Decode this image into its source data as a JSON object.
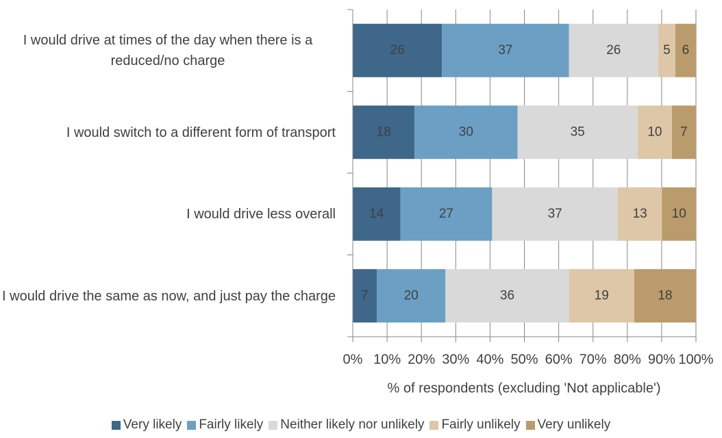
{
  "chart_data": {
    "type": "bar",
    "orientation": "horizontal",
    "stacked": "percent",
    "categories": [
      "I would drive at times of the day when there is a reduced/no charge",
      "I would switch to a different form of transport",
      "I would drive less overall",
      "I would drive the same as now, and just pay the charge"
    ],
    "series": [
      {
        "name": "Very likely",
        "color": "#3e6789",
        "values": [
          26,
          18,
          14,
          7
        ]
      },
      {
        "name": "Fairly likely",
        "color": "#6b9fc3",
        "values": [
          37,
          30,
          27,
          20
        ]
      },
      {
        "name": "Neither likely nor unlikely",
        "color": "#d9d9d9",
        "values": [
          26,
          35,
          37,
          36
        ]
      },
      {
        "name": "Fairly unlikely",
        "color": "#ddc7a7",
        "values": [
          5,
          10,
          13,
          19
        ]
      },
      {
        "name": "Very unlikely",
        "color": "#ba9b6b",
        "values": [
          6,
          7,
          10,
          18
        ]
      }
    ],
    "xlabel": "% of respondents (excluding 'Not applicable')",
    "xlim": [
      0,
      100
    ],
    "xticks": [
      {
        "value": 0,
        "label": "0%"
      },
      {
        "value": 10,
        "label": "10%"
      },
      {
        "value": 20,
        "label": "20%"
      },
      {
        "value": 30,
        "label": "30%"
      },
      {
        "value": 40,
        "label": "40%"
      },
      {
        "value": 50,
        "label": "50%"
      },
      {
        "value": 60,
        "label": "60%"
      },
      {
        "value": 70,
        "label": "70%"
      },
      {
        "value": 80,
        "label": "80%"
      },
      {
        "value": 90,
        "label": "90%"
      },
      {
        "value": 100,
        "label": "100%"
      }
    ],
    "grid": true,
    "legend": "bottom"
  }
}
